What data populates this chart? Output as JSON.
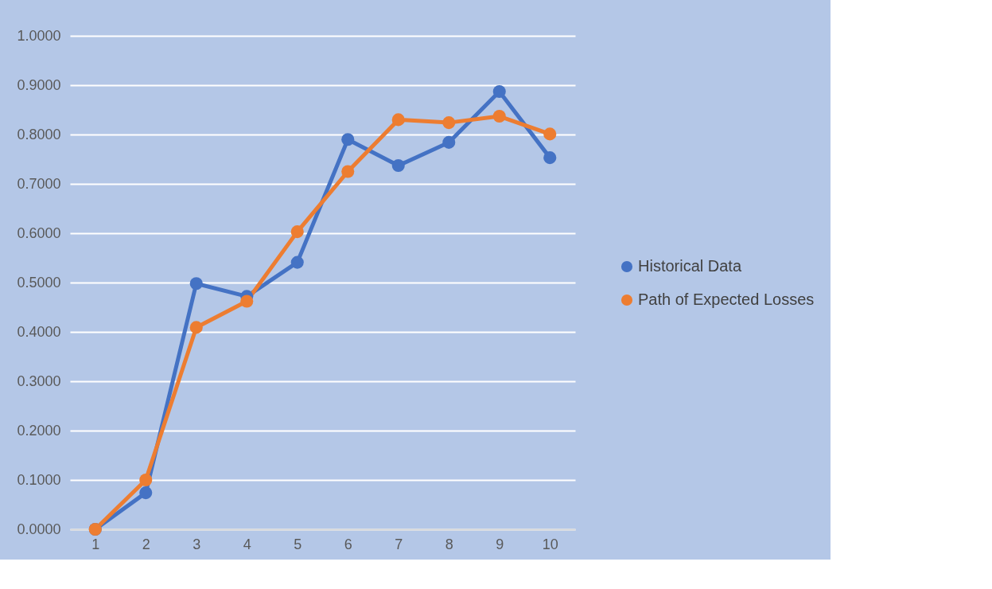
{
  "chart_data": {
    "type": "line",
    "categories": [
      "1",
      "2",
      "3",
      "4",
      "5",
      "6",
      "7",
      "8",
      "9",
      "10"
    ],
    "series": [
      {
        "name": "Historical Data",
        "color": "#4472c4",
        "values": [
          0.0,
          0.074,
          0.498,
          0.472,
          0.541,
          0.79,
          0.737,
          0.784,
          0.887,
          0.753
        ]
      },
      {
        "name": "Path of Expected Losses",
        "color": "#ed7d31",
        "values": [
          0.0,
          0.1,
          0.409,
          0.462,
          0.603,
          0.725,
          0.83,
          0.824,
          0.837,
          0.801
        ]
      }
    ],
    "ylim": [
      0,
      1
    ],
    "yticks": [
      {
        "value": 0,
        "label": "0.0000"
      },
      {
        "value": 0.1,
        "label": "0.1000"
      },
      {
        "value": 0.2,
        "label": "0.2000"
      },
      {
        "value": 0.3,
        "label": "0.3000"
      },
      {
        "value": 0.4,
        "label": "0.4000"
      },
      {
        "value": 0.5,
        "label": "0.5000"
      },
      {
        "value": 0.6,
        "label": "0.6000"
      },
      {
        "value": 0.7,
        "label": "0.7000"
      },
      {
        "value": 0.8,
        "label": "0.8000"
      },
      {
        "value": 0.9,
        "label": "0.9000"
      },
      {
        "value": 1.0,
        "label": "1.0000"
      }
    ],
    "grid": "y",
    "legend": "right",
    "marker": "circle",
    "line_style": "solid"
  }
}
